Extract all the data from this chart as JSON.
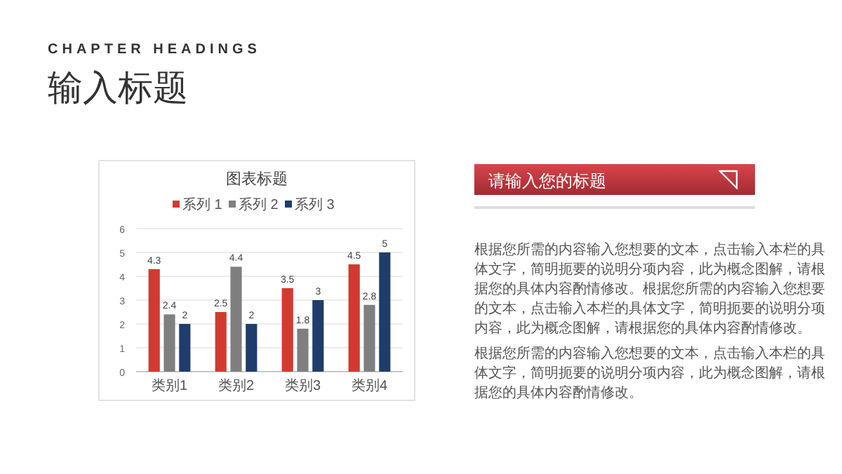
{
  "chart_data": {
    "type": "bar",
    "title": "图表标题",
    "categories": [
      "类别1",
      "类别2",
      "类别3",
      "类别4"
    ],
    "series": [
      {
        "name": "系列 1",
        "color": "#d23a2f",
        "values": [
          4.3,
          2.5,
          3.5,
          4.5
        ]
      },
      {
        "name": "系列 2",
        "color": "#7f7f7f",
        "values": [
          2.4,
          4.4,
          1.8,
          2.8
        ]
      },
      {
        "name": "系列 3",
        "color": "#1f3d6b",
        "values": [
          2,
          2,
          3,
          5
        ]
      }
    ],
    "ylim": [
      0,
      6
    ],
    "yticks": [
      0,
      1,
      2,
      3,
      4,
      5,
      6
    ],
    "grid": "y",
    "legend": "top",
    "data_labels": true,
    "annotations": [
      "CHAPTER HEADINGS",
      "输入标题",
      "请输入您的标题",
      "根据您所需的内容输入您想要的文本，点击输入本栏的具体文字，简明扼要的说明分项内容，此为概念图解，请根据您的具体内容酌情修改。根据您所需的内容输入您想要的文本，点击输入本栏的具体文字，简明扼要的说明分项内容，此为概念图解，请根据您的具体内容酌情修改。",
      "根据您所需的内容输入您想要的文本，点击输入本栏的具体文字，简明扼要的说明分项内容，此为概念图解，请根据您的具体内容酌情修改。"
    ]
  }
}
